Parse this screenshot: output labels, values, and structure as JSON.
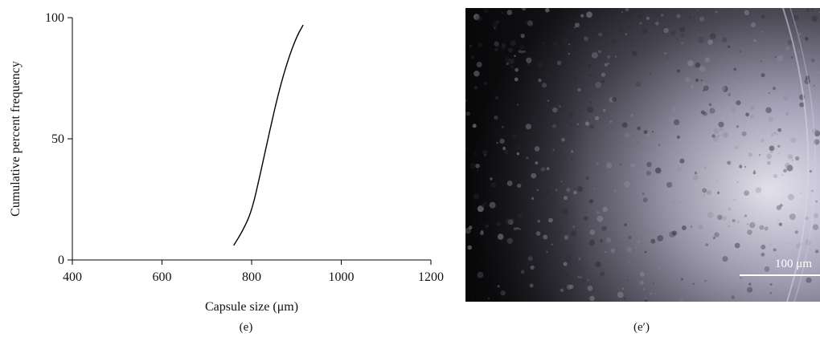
{
  "chart_data": {
    "type": "line",
    "x": [
      760,
      780,
      800,
      820,
      840,
      860,
      880,
      900,
      915
    ],
    "y": [
      6,
      12,
      20,
      36,
      53,
      69,
      82,
      92,
      97
    ],
    "xlabel": "Capsule size (μm)",
    "ylabel": "Cumulative percent frequency",
    "xlim": [
      400,
      1200
    ],
    "ylim": [
      0,
      100
    ],
    "xticks": [
      "400",
      "600",
      "800",
      "1000",
      "1200"
    ],
    "yticks": [
      "0",
      "50",
      "100"
    ],
    "grid": false,
    "line_color": "#000000"
  },
  "panels": {
    "chart_label": "(e)",
    "image_label": "(e′)"
  },
  "micrograph": {
    "scale_bar_label": "100 μm"
  }
}
